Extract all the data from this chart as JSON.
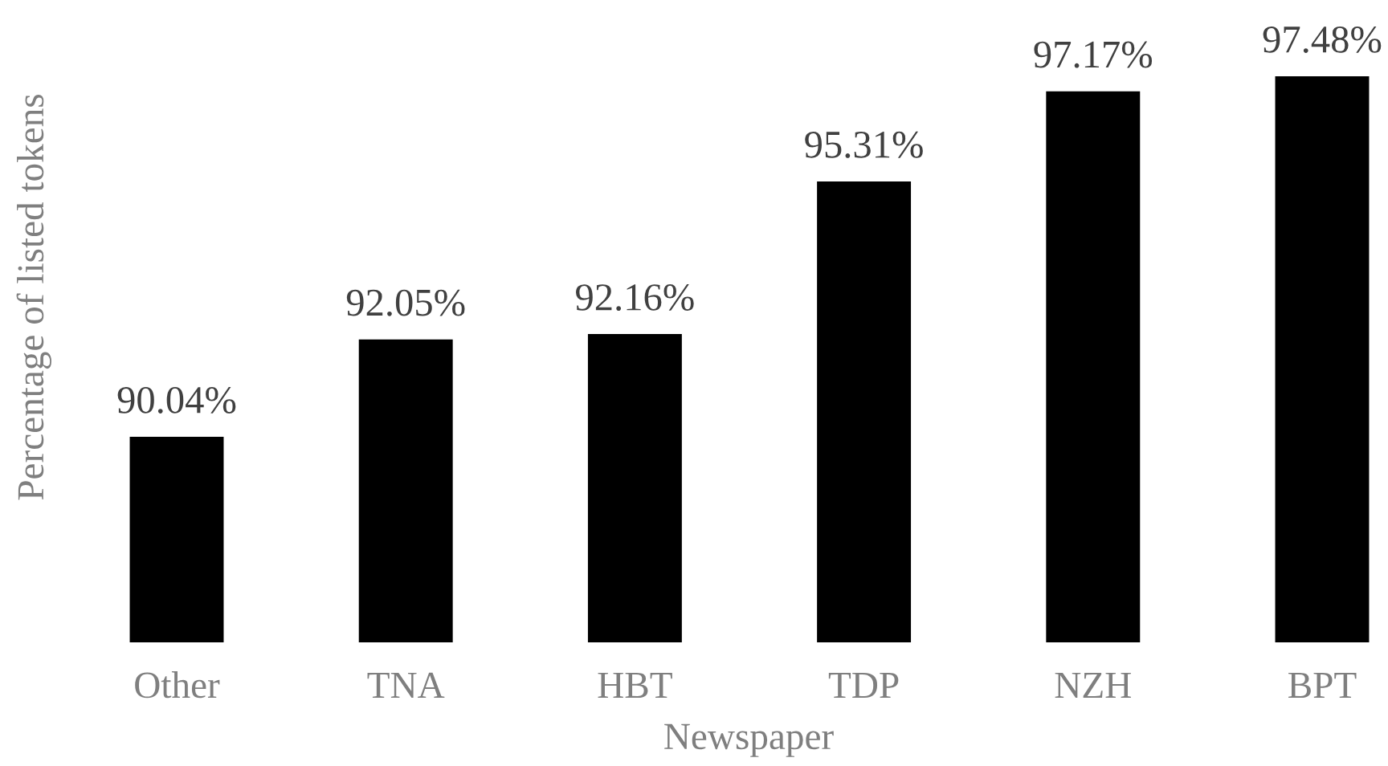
{
  "chart_data": {
    "type": "bar",
    "xlabel": "Newspaper",
    "ylabel": "Percentage of listed tokens",
    "categories": [
      "Other",
      "TNA",
      "HBT",
      "TDP",
      "NZH",
      "BPT"
    ],
    "values": [
      90.04,
      92.05,
      92.16,
      95.31,
      97.17,
      97.48
    ],
    "value_labels": [
      "90.04%",
      "92.05%",
      "92.16%",
      "95.31%",
      "97.17%",
      "97.48%"
    ],
    "color": "#000000",
    "ylim": [
      85.8,
      97.48
    ],
    "tick_labels": "x"
  }
}
